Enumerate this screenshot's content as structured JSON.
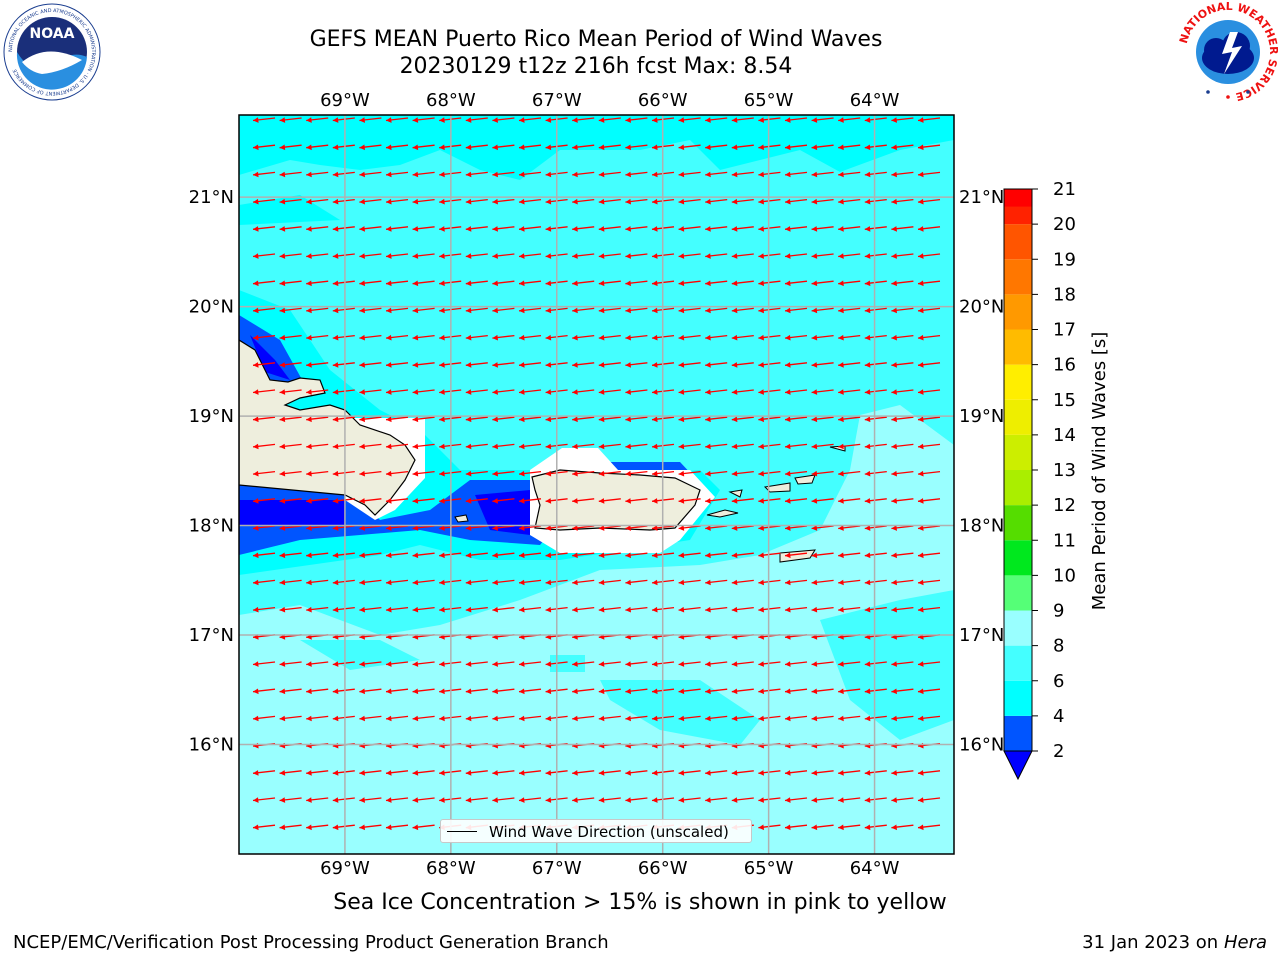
{
  "header": {
    "title_line1": "GEFS MEAN Puerto Rico Mean Period of Wind Waves",
    "title_line2": "20230129 t12z 216h fcst   Max: 8.54"
  },
  "logos": {
    "noaa": {
      "text": "NOAA",
      "ring_text": "NATIONAL OCEANIC AND ATMOSPHERIC ADMINISTRATION · U.S. DEPARTMENT OF COMMERCE"
    },
    "nws": {
      "ring_text": "NATIONAL WEATHER SERVICE"
    }
  },
  "map": {
    "lon_labels": [
      "69°W",
      "68°W",
      "67°W",
      "66°W",
      "65°W",
      "64°W"
    ],
    "lat_labels": [
      "21°N",
      "20°N",
      "19°N",
      "18°N",
      "17°N",
      "16°N"
    ],
    "lon_values": [
      -69,
      -68,
      -67,
      -66,
      -65,
      -64
    ],
    "lat_values": [
      21,
      20,
      19,
      18,
      17,
      16
    ],
    "extent": {
      "lon_min": -70,
      "lon_max": -63.25,
      "lat_min": 15.0,
      "lat_max": 21.75
    },
    "ocean_color": "#00ffff",
    "land_color": "#eeeedd",
    "arrow_color": "#ff0000",
    "arrow_direction": "toward west, slight south",
    "legend_label": "Wind Wave Direction (unscaled)"
  },
  "colorbar": {
    "label": "Mean Period of Wind Waves [s]",
    "tick_labels": [
      "2",
      "4",
      "6",
      "8",
      "9",
      "10",
      "11",
      "12",
      "13",
      "14",
      "15",
      "16",
      "17",
      "18",
      "19",
      "20",
      "21"
    ],
    "bins": [
      {
        "from": 2,
        "to": 4,
        "color": "#0055ff"
      },
      {
        "from": 4,
        "to": 6,
        "color": "#00ffff"
      },
      {
        "from": 6,
        "to": 8,
        "color": "#44ffff"
      },
      {
        "from": 8,
        "to": 9,
        "color": "#99ffff"
      },
      {
        "from": 9,
        "to": 10,
        "color": "#55ff77"
      },
      {
        "from": 10,
        "to": 11,
        "color": "#00e81e"
      },
      {
        "from": 11,
        "to": 12,
        "color": "#55dd00"
      },
      {
        "from": 12,
        "to": 13,
        "color": "#aaee00"
      },
      {
        "from": 13,
        "to": 14,
        "color": "#ccee00"
      },
      {
        "from": 14,
        "to": 15,
        "color": "#eeee00"
      },
      {
        "from": 15,
        "to": 16,
        "color": "#ffee00"
      },
      {
        "from": 16,
        "to": 17,
        "color": "#ffbb00"
      },
      {
        "from": 17,
        "to": 18,
        "color": "#ff9900"
      },
      {
        "from": 18,
        "to": 19,
        "color": "#ff7700"
      },
      {
        "from": 19,
        "to": 20,
        "color": "#ff5500"
      },
      {
        "from": 20,
        "to": 21,
        "color": "#ff2200"
      }
    ],
    "under_color": "#0000ff",
    "top_color": "#ff0000"
  },
  "footer": {
    "note": "Sea Ice Concentration > 15% is shown in pink to yellow",
    "left": "NCEP/EMC/Verification Post Processing Product Generation Branch",
    "right_prefix": "31 Jan 2023 on ",
    "right_machine": "Hera"
  }
}
